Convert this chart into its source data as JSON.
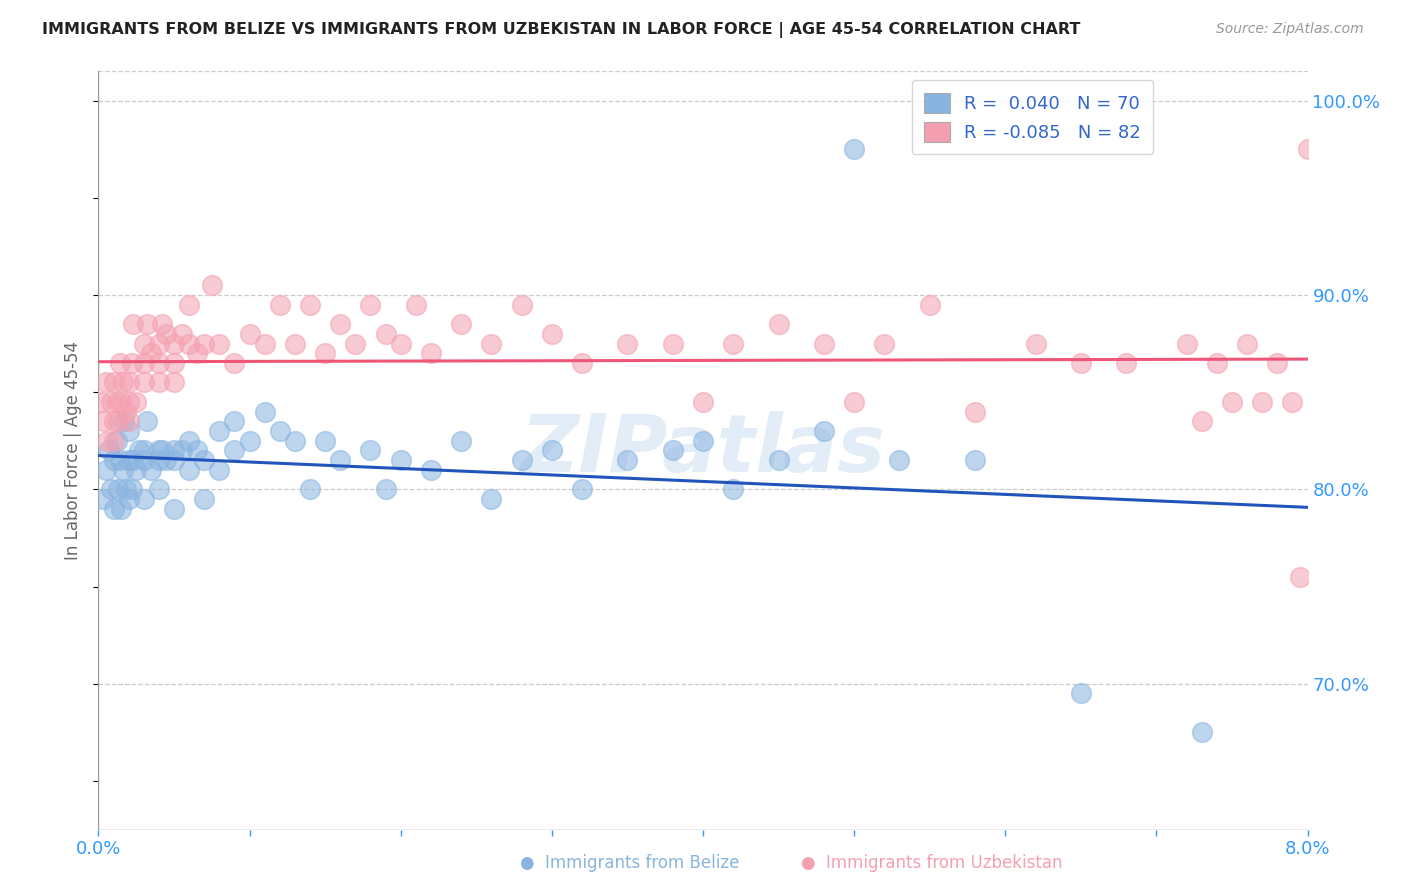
{
  "title": "IMMIGRANTS FROM BELIZE VS IMMIGRANTS FROM UZBEKISTAN IN LABOR FORCE | AGE 45-54 CORRELATION CHART",
  "source": "Source: ZipAtlas.com",
  "ylabel": "In Labor Force | Age 45-54",
  "xlim": [
    0.0,
    0.08
  ],
  "ylim": [
    0.625,
    1.015
  ],
  "watermark": "ZIPatlas",
  "legend_r_belize": "0.040",
  "legend_n_belize": "70",
  "legend_r_uzbekistan": "-0.085",
  "legend_n_uzbekistan": "82",
  "color_belize": "#89B4E0",
  "color_uzbekistan": "#F4A0B0",
  "trend_color_belize": "#2255BB",
  "trend_color_uzbekistan": "#EE5577",
  "belize_x": [
    0.0003,
    0.0005,
    0.0007,
    0.0008,
    0.001,
    0.001,
    0.0012,
    0.0013,
    0.0014,
    0.0015,
    0.0016,
    0.0017,
    0.0018,
    0.002,
    0.002,
    0.002,
    0.0022,
    0.0023,
    0.0025,
    0.0027,
    0.003,
    0.003,
    0.003,
    0.0032,
    0.0035,
    0.004,
    0.004,
    0.004,
    0.0042,
    0.0045,
    0.005,
    0.005,
    0.005,
    0.0055,
    0.006,
    0.006,
    0.0065,
    0.007,
    0.007,
    0.008,
    0.008,
    0.009,
    0.009,
    0.01,
    0.011,
    0.012,
    0.013,
    0.014,
    0.015,
    0.016,
    0.018,
    0.019,
    0.02,
    0.022,
    0.024,
    0.026,
    0.028,
    0.03,
    0.032,
    0.035,
    0.038,
    0.04,
    0.042,
    0.045,
    0.048,
    0.05,
    0.053,
    0.058,
    0.065,
    0.073
  ],
  "belize_y": [
    0.795,
    0.81,
    0.82,
    0.8,
    0.79,
    0.815,
    0.825,
    0.8,
    0.815,
    0.79,
    0.81,
    0.835,
    0.8,
    0.815,
    0.795,
    0.83,
    0.8,
    0.815,
    0.81,
    0.82,
    0.815,
    0.795,
    0.82,
    0.835,
    0.81,
    0.82,
    0.8,
    0.815,
    0.82,
    0.815,
    0.82,
    0.79,
    0.815,
    0.82,
    0.81,
    0.825,
    0.82,
    0.815,
    0.795,
    0.83,
    0.81,
    0.835,
    0.82,
    0.825,
    0.84,
    0.83,
    0.825,
    0.8,
    0.825,
    0.815,
    0.82,
    0.8,
    0.815,
    0.81,
    0.825,
    0.795,
    0.815,
    0.82,
    0.8,
    0.815,
    0.82,
    0.825,
    0.8,
    0.815,
    0.83,
    0.975,
    0.815,
    0.815,
    0.695,
    0.675
  ],
  "uzbekistan_x": [
    0.0002,
    0.0004,
    0.0005,
    0.0006,
    0.0008,
    0.001,
    0.001,
    0.001,
    0.0012,
    0.0013,
    0.0014,
    0.0015,
    0.0016,
    0.0018,
    0.002,
    0.002,
    0.002,
    0.0022,
    0.0023,
    0.0025,
    0.003,
    0.003,
    0.003,
    0.0032,
    0.0035,
    0.004,
    0.004,
    0.004,
    0.0042,
    0.0045,
    0.005,
    0.005,
    0.005,
    0.0055,
    0.006,
    0.006,
    0.0065,
    0.007,
    0.0075,
    0.008,
    0.009,
    0.01,
    0.011,
    0.012,
    0.013,
    0.014,
    0.015,
    0.016,
    0.017,
    0.018,
    0.019,
    0.02,
    0.021,
    0.022,
    0.024,
    0.026,
    0.028,
    0.03,
    0.032,
    0.035,
    0.038,
    0.04,
    0.042,
    0.045,
    0.048,
    0.05,
    0.052,
    0.055,
    0.058,
    0.062,
    0.065,
    0.068,
    0.072,
    0.073,
    0.074,
    0.075,
    0.076,
    0.077,
    0.078,
    0.079,
    0.0795,
    0.08
  ],
  "uzbekistan_y": [
    0.845,
    0.835,
    0.855,
    0.825,
    0.845,
    0.835,
    0.855,
    0.825,
    0.845,
    0.835,
    0.865,
    0.845,
    0.855,
    0.84,
    0.855,
    0.835,
    0.845,
    0.865,
    0.885,
    0.845,
    0.875,
    0.855,
    0.865,
    0.885,
    0.87,
    0.875,
    0.855,
    0.865,
    0.885,
    0.88,
    0.875,
    0.855,
    0.865,
    0.88,
    0.875,
    0.895,
    0.87,
    0.875,
    0.905,
    0.875,
    0.865,
    0.88,
    0.875,
    0.895,
    0.875,
    0.895,
    0.87,
    0.885,
    0.875,
    0.895,
    0.88,
    0.875,
    0.895,
    0.87,
    0.885,
    0.875,
    0.895,
    0.88,
    0.865,
    0.875,
    0.875,
    0.845,
    0.875,
    0.885,
    0.875,
    0.845,
    0.875,
    0.895,
    0.84,
    0.875,
    0.865,
    0.865,
    0.875,
    0.835,
    0.865,
    0.845,
    0.875,
    0.845,
    0.865,
    0.845,
    0.755,
    0.975
  ]
}
